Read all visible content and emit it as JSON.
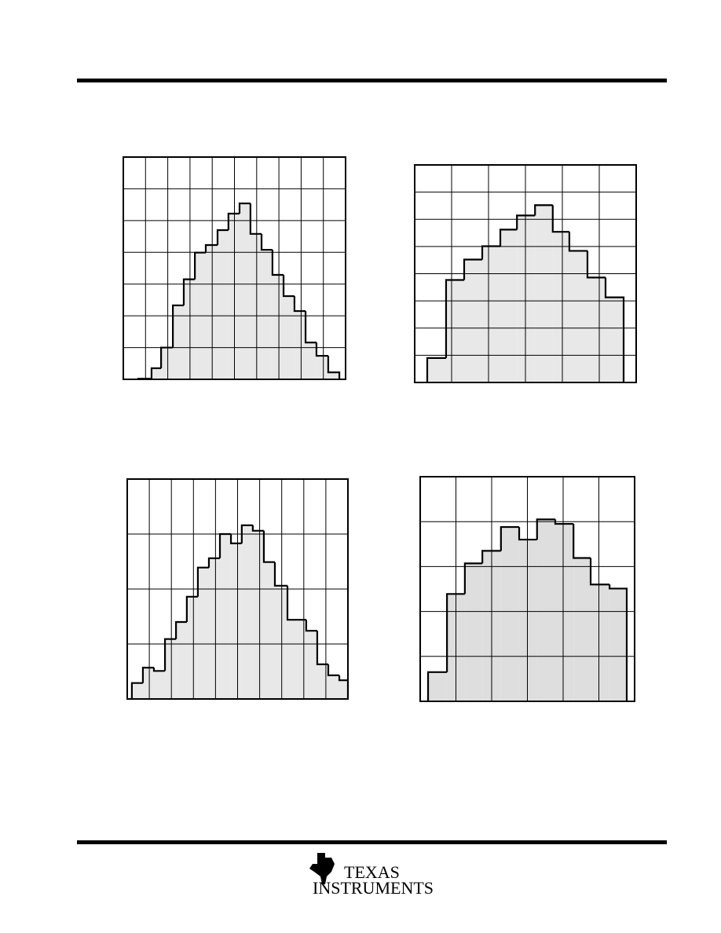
{
  "chart_data": [
    {
      "type": "histogram",
      "color": "#e8e8e8",
      "bins": [
        0.67,
        1.27,
        1.7,
        2.23,
        2.72,
        3.22,
        3.71,
        4.24,
        4.73,
        5.23,
        5.72,
        6.22,
        6.71,
        7.21,
        7.7,
        8.2,
        8.69,
        9.22,
        9.72
      ],
      "values": [
        0.02,
        0.35,
        1.0,
        2.33,
        3.15,
        3.99,
        4.23,
        4.7,
        5.22,
        5.54,
        4.58,
        4.08,
        3.29,
        2.62,
        2.15,
        1.16,
        0.74,
        0.22
      ],
      "xlim": [
        0,
        10
      ],
      "ylim": [
        0,
        7
      ],
      "xticks": [
        1,
        2,
        3,
        4,
        5,
        6,
        7,
        8,
        9
      ],
      "yticks": [
        1,
        2,
        3,
        4,
        5,
        6
      ],
      "grid": true
    },
    {
      "type": "histogram",
      "color": "#e8e8e8",
      "bins": [
        0.34,
        0.85,
        1.34,
        1.83,
        2.32,
        2.77,
        3.26,
        3.74,
        4.19,
        4.68,
        5.17,
        5.66
      ],
      "values": [
        0.9,
        3.77,
        4.52,
        5.01,
        5.62,
        6.14,
        6.52,
        5.54,
        4.84,
        3.86,
        3.13
      ],
      "xlim": [
        0,
        6
      ],
      "ylim": [
        0,
        8
      ],
      "xticks": [
        1,
        2,
        3,
        4,
        5
      ],
      "yticks": [
        1,
        2,
        3,
        4,
        5,
        6,
        7
      ],
      "grid": true
    },
    {
      "type": "histogram",
      "color": "#e8e8e8",
      "bins": [
        0.21,
        0.71,
        1.21,
        1.71,
        2.21,
        2.7,
        3.2,
        3.7,
        4.2,
        4.7,
        5.19,
        5.69,
        6.19,
        6.69,
        7.26,
        8.11,
        8.61,
        9.11,
        9.61,
        10
      ],
      "values": [
        0.29,
        0.57,
        0.51,
        1.09,
        1.4,
        1.86,
        2.39,
        2.56,
        3.0,
        2.83,
        3.16,
        3.06,
        2.49,
        2.06,
        1.44,
        1.24,
        0.63,
        0.43,
        0.34
      ],
      "xlim": [
        0,
        10
      ],
      "ylim": [
        0,
        4
      ],
      "xticks": [
        1,
        2,
        3,
        4,
        5,
        6,
        7,
        8,
        9
      ],
      "yticks": [
        1,
        2,
        3
      ],
      "grid": true
    },
    {
      "type": "histogram",
      "color": "#dedede",
      "bins": [
        0.22,
        0.75,
        1.25,
        1.74,
        2.26,
        2.77,
        3.27,
        3.78,
        4.29,
        4.77,
        5.3,
        5.78
      ],
      "values": [
        0.65,
        2.39,
        3.07,
        3.35,
        3.88,
        3.6,
        4.05,
        3.95,
        3.19,
        2.6,
        2.51
      ],
      "xlim": [
        0,
        6
      ],
      "ylim": [
        0,
        5
      ],
      "xticks": [
        1,
        2,
        3,
        4,
        5
      ],
      "yticks": [
        1,
        2,
        3,
        4
      ],
      "grid": true
    }
  ],
  "footer": {
    "logo": [
      "TEXAS",
      "INSTRUMENTS"
    ]
  }
}
